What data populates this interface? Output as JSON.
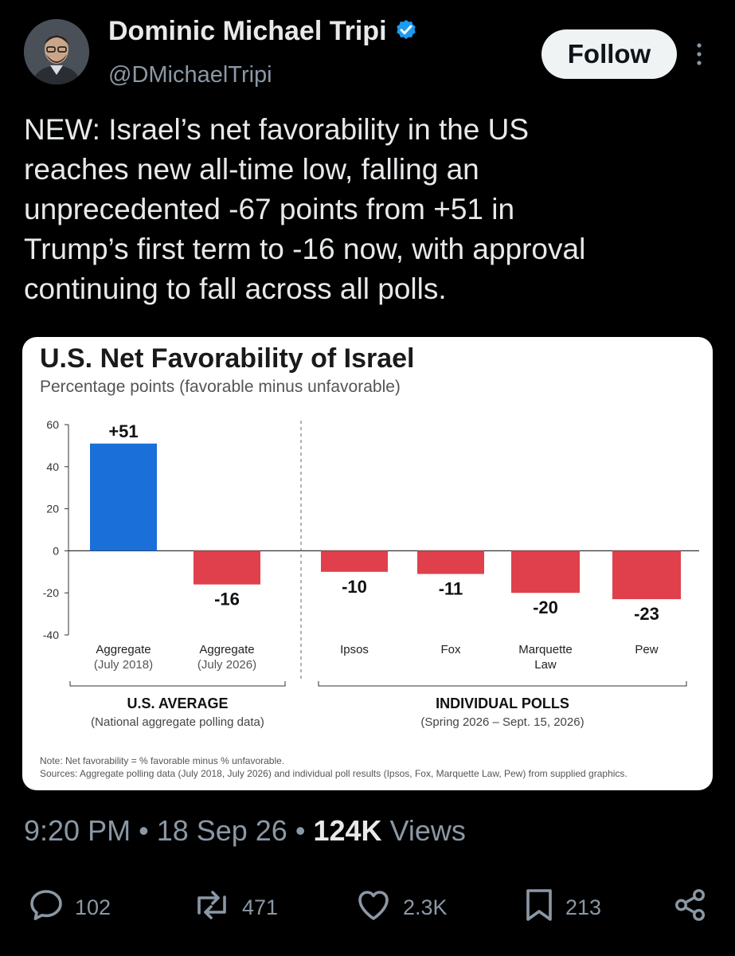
{
  "author": {
    "name": "Dominic Michael Tripi",
    "handle": "@DMichaelTripi",
    "follow_label": "Follow"
  },
  "tweet": {
    "lines": [
      "NEW: Israel’s net favorability in the US",
      "reaches new all-time low, falling an",
      "unprecedented -67 points from +51 in",
      "Trump’s first term to -16 now, with approval",
      "continuing to fall across all polls."
    ]
  },
  "card": {
    "title": "U.S. Net Favorability of Israel",
    "subtitle": "Percentage points (favorable minus unfavorable)",
    "note": "Note: Net favorability = % favorable minus % unfavorable.",
    "sources": "Sources: Aggregate polling data (July 2018, July 2026) and individual poll results (Ipsos, Fox, Marquette Law, Pew) from supplied graphics.",
    "groups": [
      {
        "title": "U.S. AVERAGE",
        "subtitle": "(National aggregate polling data)"
      },
      {
        "title": "INDIVIDUAL POLLS",
        "subtitle": "(Spring 2026 – Sept. 15, 2026)"
      }
    ]
  },
  "chart_data": {
    "type": "bar",
    "title": "U.S. Net Favorability of Israel",
    "subtitle": "Percentage points (favorable minus unfavorable)",
    "categories": [
      [
        "Aggregate",
        "(July 2018)"
      ],
      [
        "Aggregate",
        "(July 2026)"
      ],
      [
        "Ipsos"
      ],
      [
        "Fox"
      ],
      [
        "Marquette",
        "Law"
      ],
      [
        "Pew"
      ]
    ],
    "values": [
      51,
      -16,
      -10,
      -11,
      -20,
      -23
    ],
    "value_labels": [
      "+51",
      "-16",
      "-10",
      "-11",
      "-20",
      "-23"
    ],
    "ylim": [
      -40,
      60
    ],
    "yticks": [
      60,
      40,
      20,
      0,
      -20,
      -40
    ],
    "colors": {
      "positive": "#1a6fd8",
      "negative": "#e0404b"
    },
    "grid": false
  },
  "meta": {
    "time": "9:20 PM",
    "date": "18 Sep 26",
    "views_count": "124K",
    "views_label": "Views"
  },
  "actions": {
    "replies": "102",
    "reposts": "471",
    "likes": "2.3K",
    "bookmarks": "213"
  }
}
